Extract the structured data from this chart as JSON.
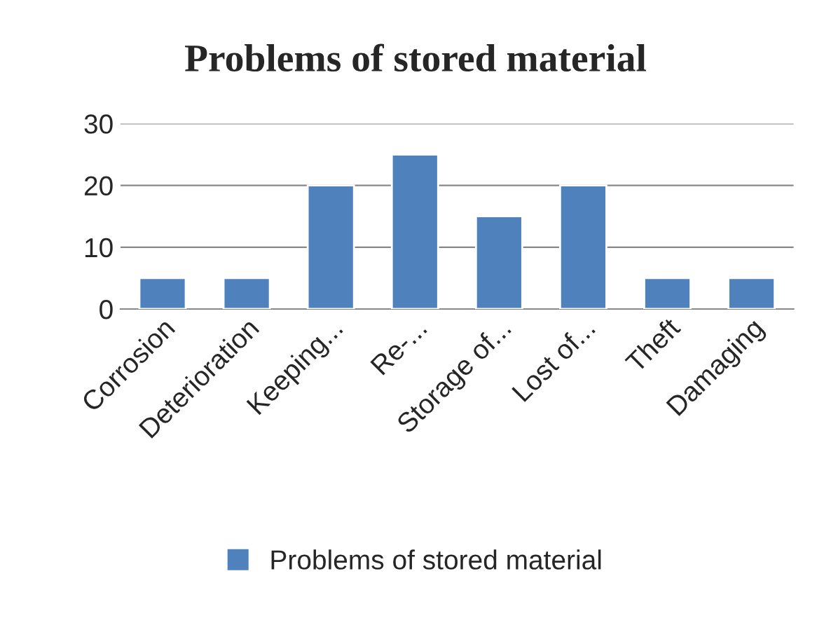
{
  "chart_data": {
    "type": "bar",
    "title": "Problems of stored material",
    "categories": [
      "Corrosion",
      "Deterioration",
      "Keeping...",
      "Re-...",
      "Storage of...",
      "Lost of...",
      "Theft",
      "Damaging"
    ],
    "series": [
      {
        "name": "Problems of stored material",
        "color": "#4f81bd",
        "values": [
          5,
          5,
          20,
          25,
          15,
          20,
          5,
          5
        ]
      }
    ],
    "ylim": [
      0,
      30
    ],
    "yticks": [
      0,
      10,
      20,
      30
    ],
    "grid": "y",
    "legend": "bottom"
  }
}
